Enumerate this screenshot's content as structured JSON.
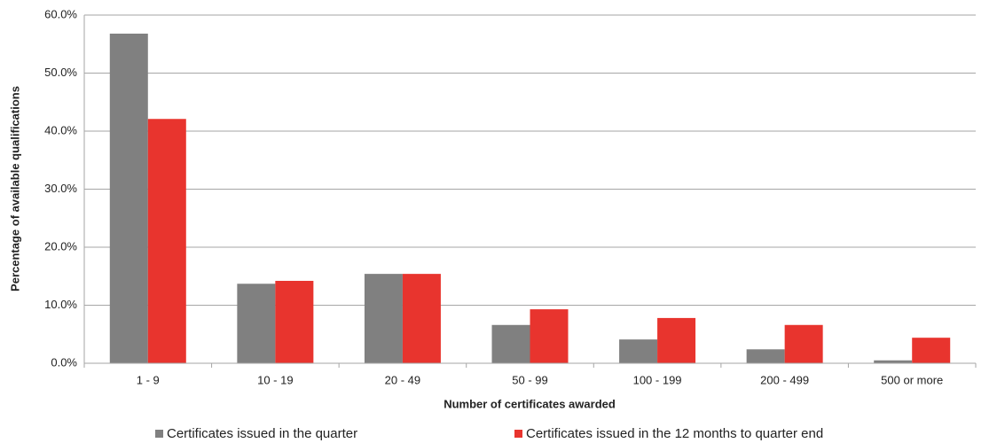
{
  "chart_data": {
    "type": "bar",
    "x_label": "Number of certificates awarded",
    "y_label": "Percentage of available qualifications",
    "categories": [
      "1 - 9",
      "10 - 19",
      "20 - 49",
      "50 - 99",
      "100 - 199",
      "200 - 499",
      "500 or more"
    ],
    "series": [
      {
        "name": "Certificates issued in the quarter",
        "color": "#808080",
        "values": [
          56.8,
          13.7,
          15.4,
          6.6,
          4.1,
          2.4,
          0.5
        ]
      },
      {
        "name": "Certificates issued in the 12 months to quarter end",
        "color": "#e8342e",
        "values": [
          42.1,
          14.2,
          15.4,
          9.3,
          7.8,
          6.6,
          4.4
        ]
      }
    ],
    "ylim": [
      0,
      60
    ],
    "yticks": [
      {
        "value": 0,
        "label": "0.0%"
      },
      {
        "value": 10,
        "label": "10.0%"
      },
      {
        "value": 20,
        "label": "20.0%"
      },
      {
        "value": 30,
        "label": "30.0%"
      },
      {
        "value": 40,
        "label": "40.0%"
      },
      {
        "value": 50,
        "label": "50.0%"
      },
      {
        "value": 60,
        "label": "60.0%"
      }
    ],
    "grid": true,
    "legend": "bottom"
  }
}
